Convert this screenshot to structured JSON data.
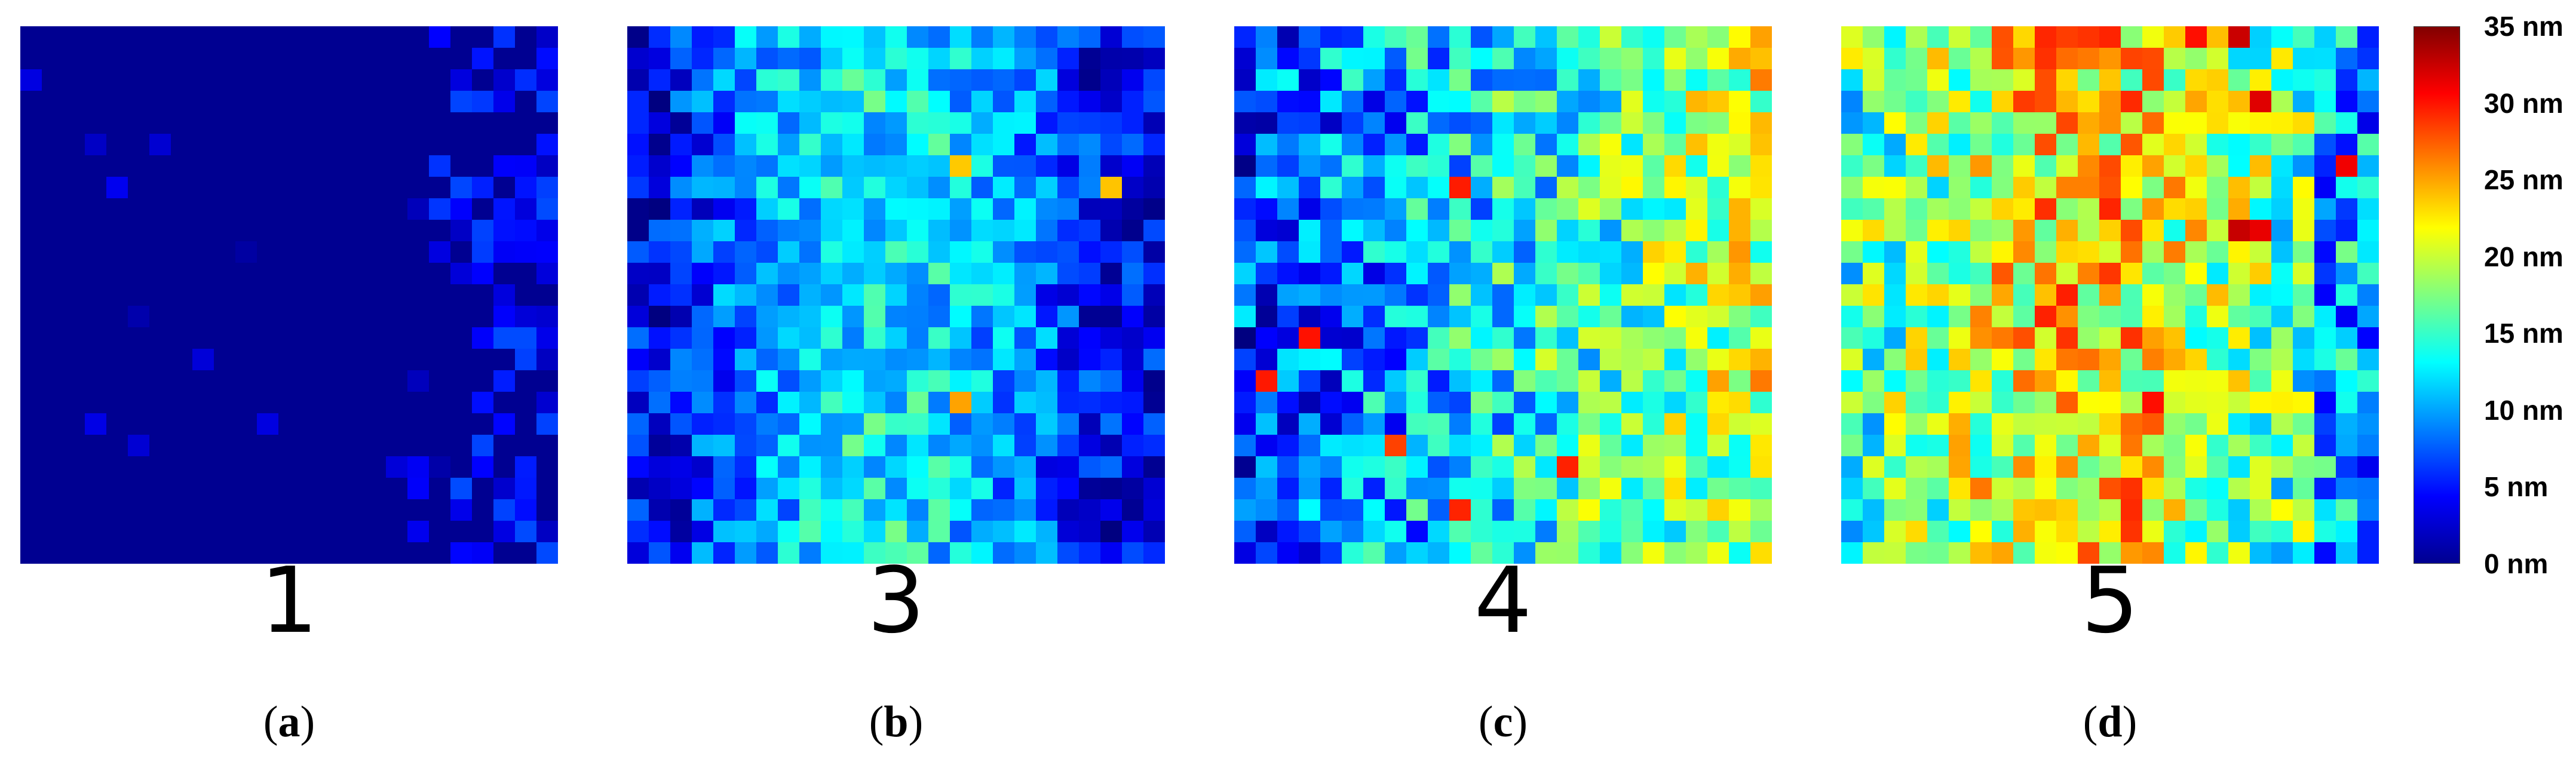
{
  "chart_data": {
    "type": "heatmap",
    "colormap": "jet",
    "value_range_nm": [
      0,
      35
    ],
    "colorbar": {
      "placement": "right",
      "ticks": [
        {
          "value": 35,
          "label": "35 nm"
        },
        {
          "value": 30,
          "label": "30 nm"
        },
        {
          "value": 25,
          "label": "25 nm"
        },
        {
          "value": 20,
          "label": "20 nm"
        },
        {
          "value": 15,
          "label": "15 nm"
        },
        {
          "value": 10,
          "label": "10 nm"
        },
        {
          "value": 5,
          "label": "5 nm"
        },
        {
          "value": 0,
          "label": "0 nm"
        }
      ]
    },
    "grid_size": [
      25,
      25
    ],
    "panels": [
      {
        "id": "a",
        "number": "1",
        "caption": "a",
        "value_summary": {
          "dominant_nm": 0,
          "typical_range_nm": [
            0,
            5
          ],
          "max_nm": 8,
          "trend": "slight increase toward right edge"
        }
      },
      {
        "id": "b",
        "number": "3",
        "caption": "b",
        "value_summary": {
          "dominant_nm": 9,
          "typical_range_nm": [
            3,
            14
          ],
          "max_nm": 25,
          "trend": "higher in center, lower at left and right edges"
        }
      },
      {
        "id": "c",
        "number": "4",
        "caption": "c",
        "value_summary": {
          "dominant_nm": 12,
          "typical_range_nm": [
            4,
            22
          ],
          "max_nm": 30,
          "trend": "increasing from left to right"
        }
      },
      {
        "id": "d",
        "number": "5",
        "caption": "d",
        "value_summary": {
          "dominant_nm": 19,
          "typical_range_nm": [
            12,
            27
          ],
          "max_nm": 33,
          "trend": "highest in central band, lower at right edge"
        }
      }
    ]
  }
}
